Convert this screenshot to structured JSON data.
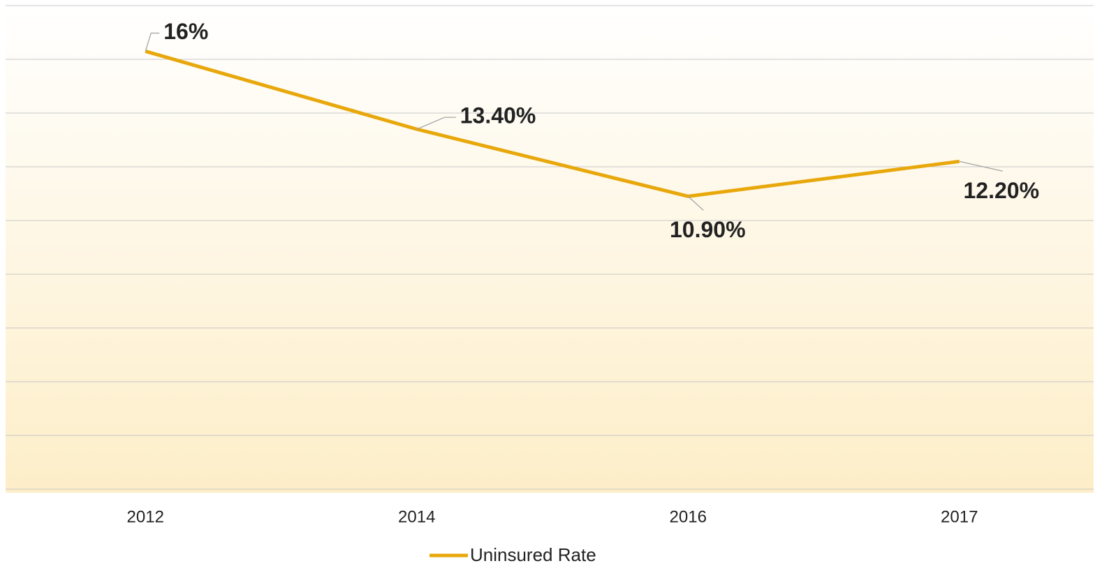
{
  "chart_data": {
    "type": "line",
    "categories": [
      "2012",
      "2014",
      "2016",
      "2017"
    ],
    "series": [
      {
        "name": "Uninsured Rate",
        "color": "#e8a80c",
        "values": [
          16.3,
          13.4,
          10.9,
          12.2
        ],
        "value_labels": [
          "16%",
          "13.40%",
          "10.90%",
          "12.20%"
        ]
      }
    ],
    "ylim": [
      0,
      18
    ],
    "yticks": [
      0,
      2,
      4,
      6,
      8,
      10,
      12,
      14,
      16,
      18
    ],
    "grid": true,
    "legend": "bottom"
  }
}
